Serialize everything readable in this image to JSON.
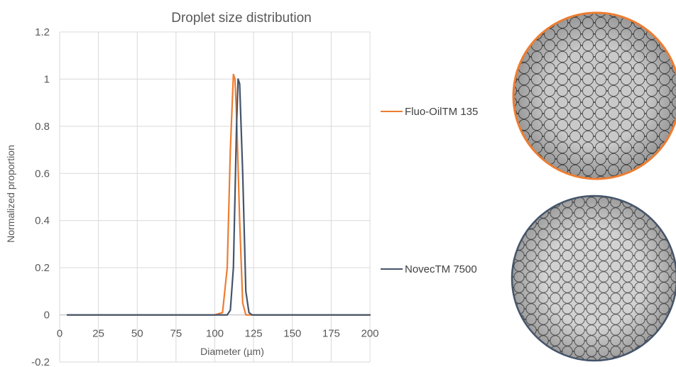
{
  "chart_data": {
    "type": "line",
    "title": "Droplet size distribution",
    "xlabel": "Diameter (µm)",
    "ylabel": "Normalized proportion",
    "xlim": [
      0,
      200
    ],
    "ylim": [
      -0.2,
      1.2
    ],
    "x_ticks": [
      "0",
      "25",
      "50",
      "75",
      "100",
      "125",
      "150",
      "175",
      "200"
    ],
    "y_ticks": [
      "1.2",
      "1",
      "0.8",
      "0.6",
      "0.4",
      "0.2",
      "0",
      "-0.2"
    ],
    "grid": true,
    "legend": "right",
    "series": [
      {
        "name": "Fluo-OilTM 135",
        "color": "#ED7D31",
        "x": [
          5,
          100,
          105,
          108,
          110,
          112,
          113,
          114,
          116,
          118,
          120,
          125,
          200
        ],
        "y": [
          0,
          0,
          0.01,
          0.2,
          0.7,
          1.02,
          1.0,
          0.85,
          0.4,
          0.05,
          0,
          0,
          0
        ]
      },
      {
        "name": "NovecTM 7500",
        "color": "#44546A",
        "x": [
          5,
          100,
          108,
          110,
          112,
          114,
          115,
          116,
          118,
          120,
          122,
          124,
          200
        ],
        "y": [
          0,
          0,
          0,
          0.02,
          0.2,
          0.8,
          1.0,
          0.98,
          0.6,
          0.1,
          0.01,
          0,
          0
        ]
      }
    ]
  },
  "images": [
    {
      "label": "droplet-monolayer-fluo-oil",
      "ring_color": "#ED7D31"
    },
    {
      "label": "droplet-monolayer-novec",
      "ring_color": "#44546A"
    }
  ]
}
